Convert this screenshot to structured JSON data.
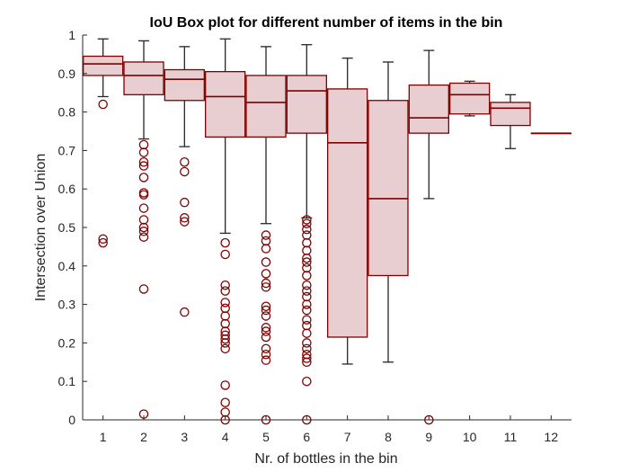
{
  "chart_data": {
    "type": "box",
    "title": "IoU Box plot for different number of items in the bin",
    "xlabel": "Nr. of bottles in the bin",
    "ylabel": "Intersection over Union",
    "categories": [
      "1",
      "2",
      "3",
      "4",
      "5",
      "6",
      "7",
      "8",
      "9",
      "10",
      "11",
      "12"
    ],
    "ylim": [
      0,
      1
    ],
    "yticks": [
      "0",
      "0.1",
      "0.2",
      "0.3",
      "0.4",
      "0.5",
      "0.6",
      "0.7",
      "0.8",
      "0.9",
      "1"
    ],
    "grid": false,
    "colors": {
      "box_fill": "#e8cdd1",
      "box_edge": "#7f0000",
      "whisker": "#262626",
      "outlier": "#7f0000",
      "axis": "#262626"
    },
    "boxes": [
      {
        "category": "1",
        "whisker_low": 0.84,
        "q1": 0.895,
        "median": 0.925,
        "q3": 0.945,
        "whisker_high": 0.99,
        "outliers": [
          0.82,
          0.47,
          0.46
        ]
      },
      {
        "category": "2",
        "whisker_low": 0.73,
        "q1": 0.845,
        "median": 0.895,
        "q3": 0.93,
        "whisker_high": 0.985,
        "outliers": [
          0.715,
          0.695,
          0.67,
          0.66,
          0.63,
          0.59,
          0.585,
          0.55,
          0.52,
          0.5,
          0.49,
          0.475,
          0.34,
          0.015
        ]
      },
      {
        "category": "3",
        "whisker_low": 0.71,
        "q1": 0.83,
        "median": 0.885,
        "q3": 0.91,
        "whisker_high": 0.97,
        "outliers": [
          0.67,
          0.645,
          0.565,
          0.525,
          0.515,
          0.28
        ]
      },
      {
        "category": "4",
        "whisker_low": 0.485,
        "q1": 0.735,
        "median": 0.84,
        "q3": 0.905,
        "whisker_high": 0.99,
        "outliers": [
          0.46,
          0.43,
          0.35,
          0.335,
          0.305,
          0.29,
          0.27,
          0.25,
          0.23,
          0.22,
          0.21,
          0.2,
          0.185,
          0.09,
          0.045,
          0.02,
          0.0
        ]
      },
      {
        "category": "5",
        "whisker_low": 0.51,
        "q1": 0.735,
        "median": 0.825,
        "q3": 0.895,
        "whisker_high": 0.97,
        "outliers": [
          0.48,
          0.465,
          0.445,
          0.41,
          0.38,
          0.355,
          0.345,
          0.295,
          0.285,
          0.27,
          0.24,
          0.23,
          0.215,
          0.185,
          0.17,
          0.155,
          0.0
        ]
      },
      {
        "category": "6",
        "whisker_low": 0.525,
        "q1": 0.745,
        "median": 0.855,
        "q3": 0.895,
        "whisker_high": 0.975,
        "outliers": [
          0.52,
          0.51,
          0.495,
          0.48,
          0.46,
          0.44,
          0.42,
          0.41,
          0.395,
          0.375,
          0.35,
          0.335,
          0.32,
          0.3,
          0.285,
          0.26,
          0.245,
          0.225,
          0.2,
          0.185,
          0.17,
          0.16,
          0.15,
          0.1,
          0.0
        ]
      },
      {
        "category": "7",
        "whisker_low": 0.145,
        "q1": 0.215,
        "median": 0.72,
        "q3": 0.86,
        "whisker_high": 0.94,
        "outliers": []
      },
      {
        "category": "8",
        "whisker_low": 0.15,
        "q1": 0.375,
        "median": 0.575,
        "q3": 0.83,
        "whisker_high": 0.93,
        "outliers": []
      },
      {
        "category": "9",
        "whisker_low": 0.575,
        "q1": 0.745,
        "median": 0.785,
        "q3": 0.87,
        "whisker_high": 0.96,
        "outliers": [
          0.0
        ]
      },
      {
        "category": "10",
        "whisker_low": 0.79,
        "q1": 0.795,
        "median": 0.845,
        "q3": 0.875,
        "whisker_high": 0.88,
        "outliers": []
      },
      {
        "category": "11",
        "whisker_low": 0.705,
        "q1": 0.765,
        "median": 0.81,
        "q3": 0.825,
        "whisker_high": 0.845,
        "outliers": []
      },
      {
        "category": "12",
        "whisker_low": 0.745,
        "q1": 0.745,
        "median": 0.745,
        "q3": 0.745,
        "whisker_high": 0.745,
        "outliers": []
      }
    ]
  }
}
